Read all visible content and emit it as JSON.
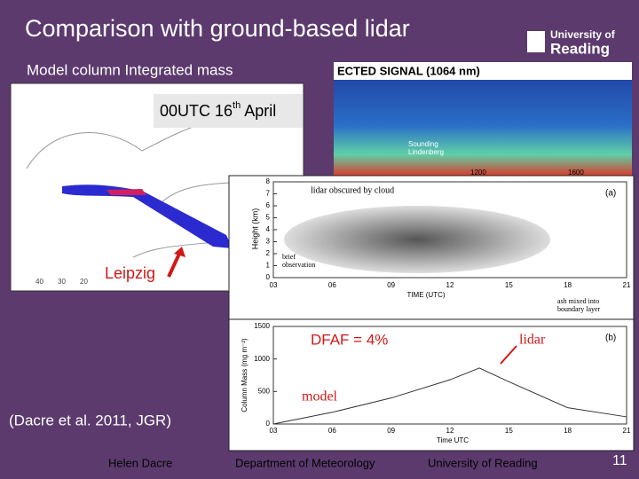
{
  "slide": {
    "title": "Comparison with ground-based lidar",
    "logo": {
      "line1": "University of",
      "line2": "Reading"
    },
    "subtitle": "Model column Integrated mass",
    "map": {
      "date": {
        "main": "00UTC 16",
        "sup": "th",
        "rest": "April"
      },
      "place": "Leipzig",
      "lon_labels": [
        "40",
        "30",
        "20"
      ]
    },
    "lidar_image": {
      "header": "ECTED SIGNAL (1064 nm)",
      "site": [
        "Sounding",
        "Lindenberg"
      ],
      "times": [
        "1200",
        "1600"
      ]
    },
    "panel_a": {
      "tag": "(a)",
      "ylabel": "Height (km)",
      "xlabel": "TIME (UTC)",
      "notes": {
        "cloud": "lidar obscured by cloud",
        "brief": [
          "brief",
          "observation"
        ],
        "ash": [
          "ash mixed into",
          "boundary layer"
        ]
      },
      "xticks": [
        "03",
        "06",
        "09",
        "12",
        "15",
        "18",
        "21"
      ],
      "yticks": [
        0,
        1,
        2,
        3,
        4,
        5,
        6,
        7,
        8
      ]
    },
    "panel_b": {
      "tag": "(b)",
      "ylabel": "Column Mass (mg m⁻²)",
      "xlabel": "Time UTC",
      "xticks": [
        "03",
        "06",
        "09",
        "12",
        "15",
        "18",
        "21"
      ],
      "yticks": [
        0,
        500,
        1000,
        1500
      ],
      "model": {
        "x": [
          3,
          6,
          9,
          12,
          13.5,
          15,
          18,
          21
        ],
        "values": [
          0,
          180,
          400,
          680,
          860,
          650,
          250,
          110
        ]
      },
      "labels": {
        "dfaf": "DFAF = 4%",
        "lidar": "lidar",
        "model": "model"
      }
    },
    "citation": "(Dacre et al. 2011, JGR)",
    "footer": {
      "author": "Helen Dacre",
      "dept": "Department of Meteorology",
      "uni": "University of Reading",
      "page": "11"
    }
  }
}
